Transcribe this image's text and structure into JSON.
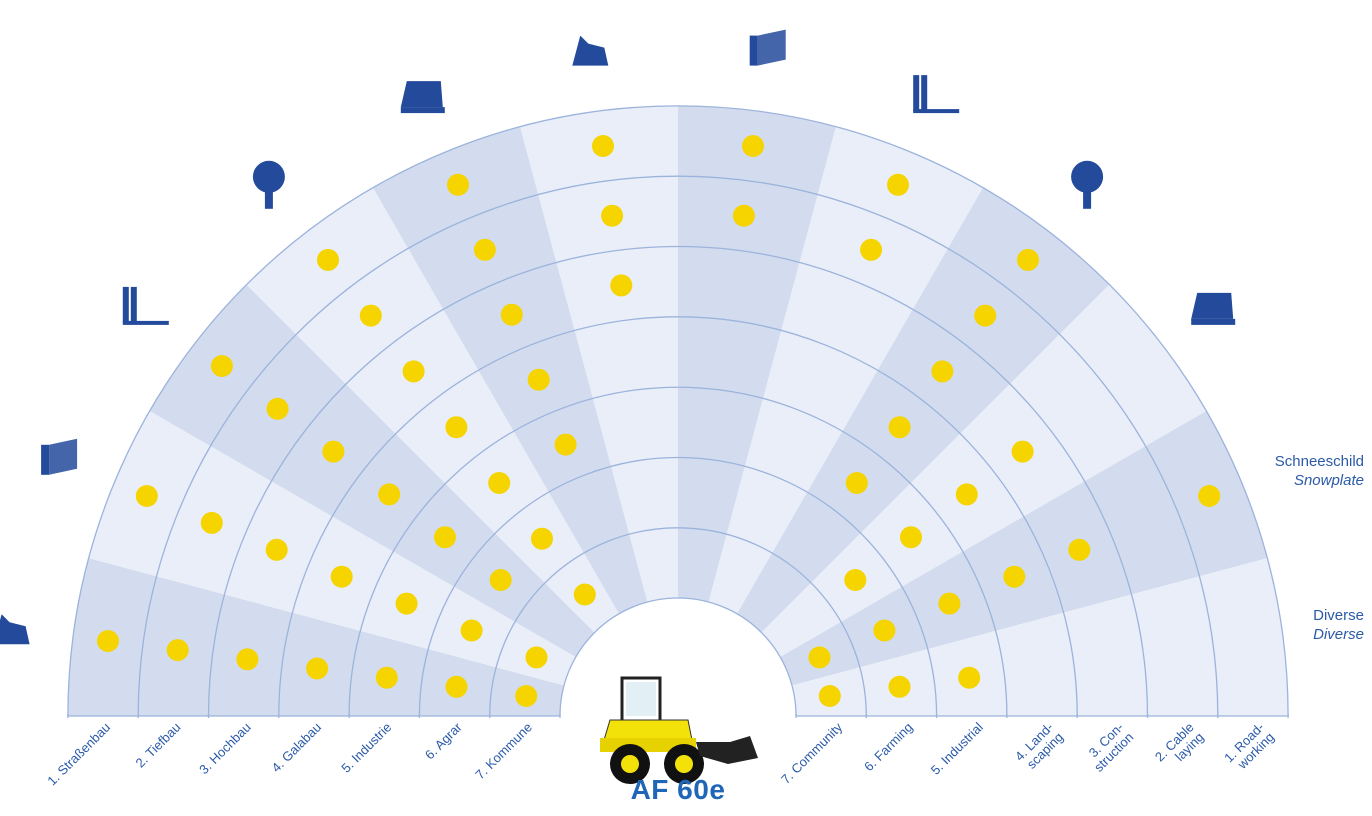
{
  "model": "AF 60e",
  "colors": {
    "ring_line": "#9cb3dc",
    "band_light": "#e9eef8",
    "band_dark": "#d2dcee",
    "dot": "#f5d400",
    "icon": "#244a9c",
    "label": "#2a5aa8"
  },
  "categories_de": [
    "1. Straßenbau",
    "2. Tiefbau",
    "3. Hochbau",
    "4. Galabau",
    "5. Industrie",
    "6. Agrar",
    "7. Kommune"
  ],
  "categories_en": [
    "7. Community",
    "6. Farming",
    "5. Industrial",
    "4. Land-\nscaping",
    "3. Con-\nstruction",
    "2. Cable\nlaying",
    "1. Road-\nworking"
  ],
  "side_labels": [
    {
      "de": "Schneeschild",
      "en": "Snowplate"
    },
    {
      "de": "Diverse",
      "en": "Diverse"
    }
  ],
  "attachment_icons": [
    "tilt-bucket-icon",
    "bucket-icon",
    "pallet-fork-icon",
    "crane-jib-icon",
    "sweeper-icon",
    "grab-bucket-icon",
    "manure-fork-icon",
    "clamp-icon",
    "auger-icon",
    "log-grab-icon"
  ],
  "attachment_matrix": [
    [
      1,
      1,
      0,
      1,
      0,
      0,
      0,
      0,
      0,
      0,
      1,
      1
    ],
    [
      1,
      1,
      1,
      1,
      0,
      0,
      0,
      0,
      0,
      1,
      1,
      1
    ],
    [
      1,
      1,
      1,
      1,
      1,
      0,
      0,
      0,
      1,
      1,
      1,
      1
    ],
    [
      1,
      1,
      1,
      1,
      1,
      0,
      0,
      0,
      1,
      1,
      1,
      0
    ],
    [
      1,
      1,
      1,
      1,
      1,
      1,
      0,
      0,
      1,
      1,
      1,
      0
    ],
    [
      1,
      1,
      1,
      1,
      1,
      1,
      1,
      1,
      1,
      0,
      0,
      0
    ],
    [
      1,
      1,
      1,
      1,
      1,
      1,
      1,
      1,
      1,
      0,
      1,
      0
    ]
  ]
}
